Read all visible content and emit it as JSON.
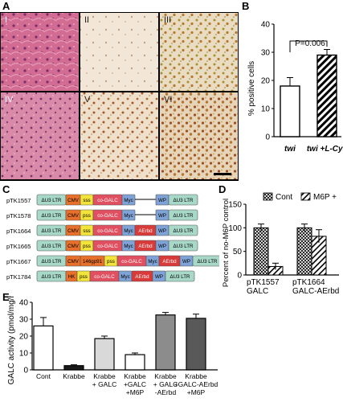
{
  "panels": {
    "A": {
      "label": "A",
      "tiles": [
        "I",
        "II",
        "III",
        "IV",
        "V",
        "VI"
      ],
      "colors": {
        "he": "#d36d93",
        "ihc": "#efe2d2",
        "brown": "#a85a2a",
        "yellowish": "#c8b266"
      }
    },
    "B": {
      "label": "B",
      "ylabel": "% positive cells",
      "yticks": [
        "0",
        "10",
        "20",
        "30",
        "40"
      ],
      "pvalue": "P=0.006",
      "categories": [
        "twi",
        "twi +L-Cys"
      ]
    },
    "C": {
      "label": "C",
      "constructs": [
        {
          "name": "pTK1557",
          "parts": [
            "ΔU3 LTR",
            "CMV",
            "sss",
            "co-GALC",
            "Myc",
            "WP",
            "ΔU3 LTR"
          ]
        },
        {
          "name": "pTK1578",
          "parts": [
            "ΔU3 LTR",
            "CMV",
            "pss",
            "co-GALC",
            "Myc",
            "WP",
            "ΔU3 LTR"
          ]
        },
        {
          "name": "pTK1664",
          "parts": [
            "ΔU3 LTR",
            "CMV",
            "sss",
            "co-GALC",
            "Myc",
            "AErbd",
            "WP",
            "ΔU3 LTR"
          ]
        },
        {
          "name": "pTK1665",
          "parts": [
            "ΔU3 LTR",
            "CMV",
            "pss",
            "co-GALC",
            "Myc",
            "AErbd",
            "WP",
            "ΔU3 LTR"
          ]
        },
        {
          "name": "pTK1667",
          "parts": [
            "ΔU3 LTR",
            "CMV",
            "146gp91",
            "pss",
            "co-GALC",
            "Myc",
            "AErbd",
            "WP",
            "ΔU3 LTR"
          ]
        },
        {
          "name": "pTK1784",
          "parts": [
            "ΔU3 LTR",
            "HK",
            "pss",
            "co-GALC",
            "Myc",
            "AErbd",
            "WP",
            "ΔU3 LTR"
          ]
        }
      ],
      "colors": {
        "ltr": "#a8d8c8",
        "cmv": "#e8702a",
        "sss": "#f2e43a",
        "galc": "#e05060",
        "myc": "#7fa3d6",
        "aerbd": "#d93a3a",
        "wp": "#7fa3d6",
        "gp91": "#e8702a"
      }
    },
    "D": {
      "label": "D",
      "legend": [
        "Cont",
        "M6P +"
      ],
      "ylabel": "Percent of no-M6P control",
      "yticks": [
        "0",
        "50",
        "100",
        "150"
      ],
      "xlabels": [
        [
          "pTK1557",
          "GALC"
        ],
        [
          "pTK1664",
          "GALC-AErbd"
        ]
      ]
    },
    "E": {
      "label": "E",
      "ylabel": "GALC activity (pmol/mg/h)",
      "yticks": [
        "0",
        "10",
        "20",
        "30",
        "40"
      ],
      "xlabels": [
        [
          "Cont"
        ],
        [
          "Krabbe"
        ],
        [
          "Krabbe",
          "+ GALC"
        ],
        [
          "Krabbe",
          "+GALC",
          "+M6P"
        ],
        [
          "Krabbe",
          "+ GALC",
          "-AErbd"
        ],
        [
          "Krabbe",
          "+GALC-AErbd",
          "+M6P"
        ]
      ]
    }
  },
  "chart_data": [
    {
      "id": "B",
      "type": "bar",
      "categories": [
        "twi",
        "twi +L-Cys"
      ],
      "values": [
        18,
        29
      ],
      "errors": [
        3,
        2
      ],
      "ylabel": "% positive cells",
      "ylim": [
        0,
        40
      ],
      "annotation": "P=0.006",
      "fills": [
        "#ffffff",
        "hatch"
      ]
    },
    {
      "id": "D",
      "type": "bar",
      "categories": [
        "pTK1557 GALC",
        "pTK1664 GALC-AErbd"
      ],
      "series": [
        {
          "name": "Cont",
          "values": [
            100,
            100
          ],
          "errors": [
            8,
            8
          ]
        },
        {
          "name": "M6P +",
          "values": [
            18,
            82
          ],
          "errors": [
            7,
            14
          ]
        }
      ],
      "ylabel": "Percent of no-M6P control",
      "ylim": [
        0,
        150
      ],
      "legend": "top"
    },
    {
      "id": "E",
      "type": "bar",
      "categories": [
        "Cont",
        "Krabbe",
        "Krabbe + GALC",
        "Krabbe +GALC +M6P",
        "Krabbe + GALC -AErbd",
        "Krabbe +GALC-AErbd +M6P"
      ],
      "values": [
        26,
        2.5,
        18.5,
        9,
        32.5,
        30.5
      ],
      "errors": [
        5,
        0.5,
        1.5,
        1,
        1.5,
        2.5
      ],
      "fills": [
        "#ffffff",
        "#1a1a1a",
        "#d9d9d9",
        "#ffffff",
        "#8c8c8c",
        "#595959"
      ],
      "ylabel": "GALC activity (pmol/mg/h)",
      "ylim": [
        0,
        40
      ]
    }
  ]
}
